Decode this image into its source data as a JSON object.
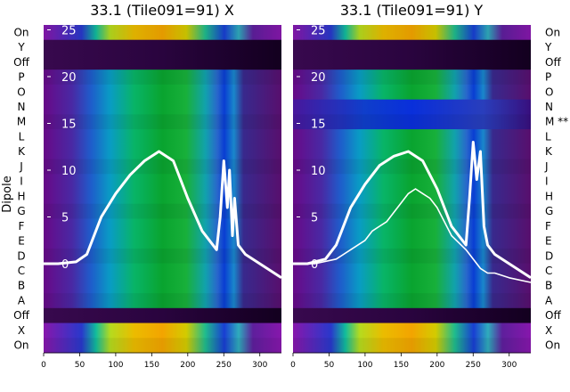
{
  "chart_data": [
    {
      "type": "heatmap",
      "title": "33.1 (Tile091=91) X",
      "ylabel": "Dipole",
      "xlim": [
        0,
        330
      ],
      "xticks": [
        0,
        50,
        100,
        150,
        200,
        250,
        300
      ],
      "dipole_rows_top_to_bottom": [
        "On",
        "Y",
        "Off",
        "P",
        "O",
        "N",
        "M",
        "L",
        "K",
        "J",
        "I",
        "H",
        "G",
        "F",
        "E",
        "D",
        "C",
        "B",
        "A",
        "Off",
        "X",
        "On"
      ],
      "overlay_ticks": [
        25,
        20,
        15,
        10,
        5,
        0
      ],
      "overlay_line_color": "#ffffff",
      "overlay_line_series": [
        {
          "x": [
            0,
            20,
            45,
            60,
            80,
            100,
            120,
            140,
            160,
            170,
            180,
            200,
            220,
            240,
            245,
            250,
            255,
            258,
            262,
            265,
            270,
            280,
            300,
            320,
            330
          ],
          "y": [
            0,
            0,
            0.2,
            1,
            5,
            7.5,
            9.5,
            11,
            12,
            11.5,
            11,
            7,
            3.5,
            1.5,
            5,
            11,
            6,
            10,
            3,
            7,
            2,
            1,
            0,
            -1,
            -1.5
          ]
        }
      ]
    },
    {
      "type": "heatmap",
      "title": "33.1 (Tile091=91) Y",
      "ylabel": "",
      "xlim": [
        0,
        330
      ],
      "xticks": [
        0,
        50,
        100,
        150,
        200,
        250,
        300
      ],
      "dipole_rows_top_to_bottom": [
        "On",
        "Y",
        "Off",
        "P",
        "O",
        "N",
        "M **",
        "L",
        "K",
        "J",
        "I",
        "H",
        "G",
        "F",
        "E",
        "D",
        "C",
        "B",
        "A",
        "Off",
        "X",
        "On"
      ],
      "overlay_ticks": [
        25,
        20,
        15,
        10,
        5,
        0
      ],
      "overlay_line_color": "#ffffff",
      "overlay_line_series": [
        {
          "x": [
            0,
            20,
            45,
            60,
            80,
            100,
            120,
            140,
            160,
            170,
            180,
            200,
            220,
            240,
            245,
            250,
            255,
            260,
            265,
            270,
            280,
            300,
            320,
            330
          ],
          "y": [
            0,
            0,
            0.5,
            2,
            6,
            8.5,
            10.5,
            11.5,
            12,
            11.5,
            11,
            8,
            4,
            2,
            7,
            13,
            9,
            12,
            4,
            2,
            1,
            0,
            -1,
            -1.5
          ]
        },
        {
          "x": [
            0,
            30,
            60,
            80,
            100,
            110,
            120,
            130,
            140,
            150,
            160,
            170,
            180,
            190,
            200,
            210,
            220,
            240,
            250,
            260,
            270,
            280,
            300,
            330
          ],
          "y": [
            0,
            0,
            0.5,
            1.5,
            2.5,
            3.5,
            4,
            4.5,
            5.5,
            6.5,
            7.5,
            8,
            7.5,
            7,
            6,
            4.5,
            3,
            1.5,
            0.5,
            -0.5,
            -1,
            -1,
            -1.5,
            -2
          ]
        }
      ]
    }
  ]
}
